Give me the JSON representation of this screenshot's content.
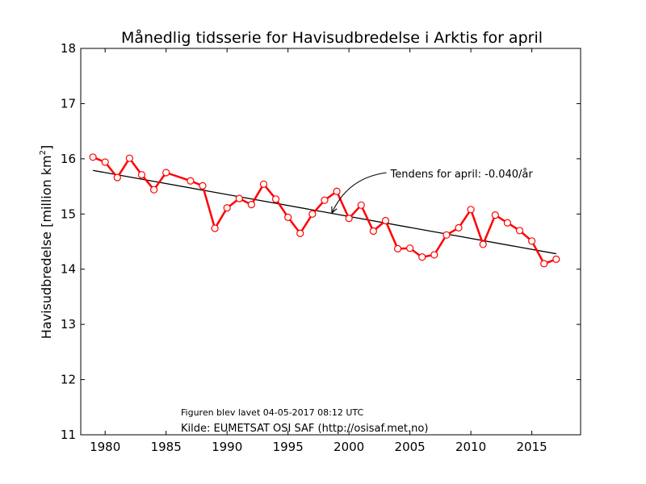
{
  "chart_data": {
    "type": "line",
    "title": "Månedlig tidsserie for Havisudbredelse i Arktis for april",
    "ylabel": "Havisudbredelse [million km",
    "ylabel_sup": "2",
    "ylabel_end": "]",
    "xlim": [
      1978,
      2019
    ],
    "ylim": [
      11,
      18
    ],
    "xticks": [
      1980,
      1985,
      1990,
      1995,
      2000,
      2005,
      2010,
      2015
    ],
    "yticks": [
      11,
      12,
      13,
      14,
      15,
      16,
      17,
      18
    ],
    "series": [
      {
        "color": "#ff0000",
        "x": [
          1979,
          1980,
          1981,
          1982,
          1983,
          1984,
          1985,
          1987,
          1988,
          1989,
          1990,
          1991,
          1992,
          1993,
          1994,
          1995,
          1996,
          1997,
          1998,
          1999,
          2000,
          2001,
          2002,
          2003,
          2004,
          2005,
          2006,
          2007,
          2008,
          2009,
          2010,
          2011,
          2012,
          2013,
          2014,
          2015,
          2016,
          2017
        ],
        "y": [
          16.03,
          15.94,
          15.66,
          16.01,
          15.71,
          15.44,
          15.75,
          15.6,
          15.51,
          14.74,
          15.11,
          15.28,
          15.17,
          15.54,
          15.27,
          14.94,
          14.65,
          15.0,
          15.25,
          15.41,
          14.92,
          15.16,
          14.69,
          14.88,
          14.37,
          14.38,
          14.22,
          14.26,
          14.62,
          14.75,
          15.08,
          14.45,
          14.98,
          14.84,
          14.7,
          14.51,
          14.1,
          14.18
        ]
      }
    ],
    "trend": {
      "color": "#000000",
      "x": [
        1979,
        2017
      ],
      "y": [
        15.79,
        14.28
      ]
    },
    "annotation": {
      "text": "Tendens for april: -0.040/år",
      "x": 2003.4,
      "y": 15.66,
      "arrow_to_x": 1998.6,
      "arrow_to_y": 15.02
    },
    "notes": {
      "created": "Figuren blev lavet 04-05-2017 08:12 UTC",
      "source": "Kilde: EUMETSAT OSI SAF (http://osisaf.met.no)"
    }
  }
}
